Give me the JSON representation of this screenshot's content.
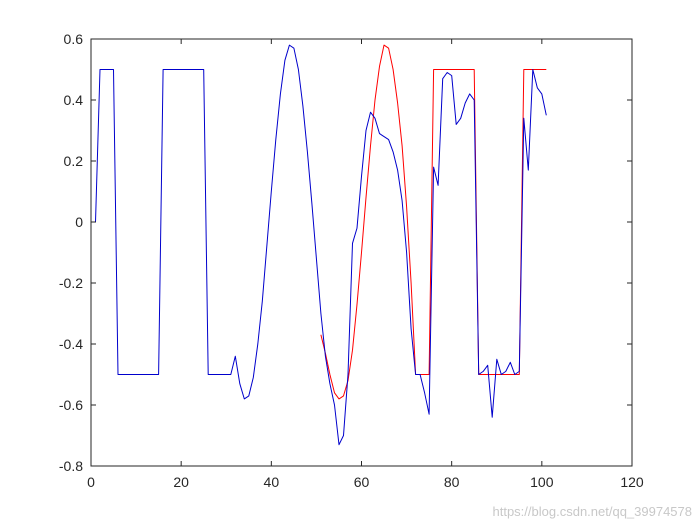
{
  "chart_data": {
    "type": "line",
    "title": "",
    "xlabel": "",
    "ylabel": "",
    "xlim": [
      0,
      120
    ],
    "ylim": [
      -0.8,
      0.6
    ],
    "xticks": [
      0,
      20,
      40,
      60,
      80,
      100,
      120
    ],
    "xtick_labels": [
      "0",
      "20",
      "40",
      "60",
      "80",
      "100",
      "120"
    ],
    "yticks": [
      0.6,
      0.4,
      0.2,
      0,
      -0.2,
      -0.4,
      -0.6,
      -0.8
    ],
    "ytick_labels": [
      "0.6",
      "0.4",
      "0.2",
      "0",
      "-0.2",
      "-0.4",
      "-0.6",
      "-0.8"
    ],
    "grid": false,
    "series": [
      {
        "color": "#ff0000",
        "points": [
          [
            51,
            -0.37
          ],
          [
            52,
            -0.43
          ],
          [
            53,
            -0.5
          ],
          [
            54,
            -0.56
          ],
          [
            55,
            -0.58
          ],
          [
            56,
            -0.57
          ],
          [
            57,
            -0.52
          ],
          [
            58,
            -0.42
          ],
          [
            59,
            -0.27
          ],
          [
            60,
            -0.1
          ],
          [
            61,
            0.08
          ],
          [
            62,
            0.25
          ],
          [
            63,
            0.4
          ],
          [
            64,
            0.51
          ],
          [
            65,
            0.58
          ],
          [
            66,
            0.57
          ],
          [
            67,
            0.5
          ],
          [
            68,
            0.39
          ],
          [
            69,
            0.25
          ],
          [
            70,
            0.05
          ],
          [
            71,
            -0.2
          ],
          [
            72,
            -0.5
          ],
          [
            73,
            -0.5
          ],
          [
            74,
            -0.5
          ],
          [
            75,
            -0.5
          ],
          [
            76,
            0.5
          ],
          [
            77,
            0.5
          ],
          [
            78,
            0.5
          ],
          [
            79,
            0.5
          ],
          [
            80,
            0.5
          ],
          [
            81,
            0.5
          ],
          [
            82,
            0.5
          ],
          [
            83,
            0.5
          ],
          [
            84,
            0.5
          ],
          [
            85,
            0.5
          ],
          [
            86,
            -0.5
          ],
          [
            87,
            -0.5
          ],
          [
            88,
            -0.5
          ],
          [
            89,
            -0.5
          ],
          [
            90,
            -0.5
          ],
          [
            91,
            -0.5
          ],
          [
            92,
            -0.5
          ],
          [
            93,
            -0.5
          ],
          [
            94,
            -0.5
          ],
          [
            95,
            -0.5
          ],
          [
            96,
            0.5
          ],
          [
            97,
            0.5
          ],
          [
            98,
            0.5
          ],
          [
            99,
            0.5
          ],
          [
            100,
            0.5
          ],
          [
            101,
            0.5
          ]
        ]
      },
      {
        "color": "#0000cc",
        "points": [
          [
            1,
            0.0
          ],
          [
            2,
            0.5
          ],
          [
            3,
            0.5
          ],
          [
            4,
            0.5
          ],
          [
            5,
            0.5
          ],
          [
            6,
            -0.5
          ],
          [
            7,
            -0.5
          ],
          [
            8,
            -0.5
          ],
          [
            9,
            -0.5
          ],
          [
            10,
            -0.5
          ],
          [
            11,
            -0.5
          ],
          [
            12,
            -0.5
          ],
          [
            13,
            -0.5
          ],
          [
            14,
            -0.5
          ],
          [
            15,
            -0.5
          ],
          [
            16,
            0.5
          ],
          [
            17,
            0.5
          ],
          [
            18,
            0.5
          ],
          [
            19,
            0.5
          ],
          [
            20,
            0.5
          ],
          [
            21,
            0.5
          ],
          [
            22,
            0.5
          ],
          [
            23,
            0.5
          ],
          [
            24,
            0.5
          ],
          [
            25,
            0.5
          ],
          [
            26,
            -0.5
          ],
          [
            27,
            -0.5
          ],
          [
            28,
            -0.5
          ],
          [
            29,
            -0.5
          ],
          [
            30,
            -0.5
          ],
          [
            31,
            -0.5
          ],
          [
            32,
            -0.44
          ],
          [
            33,
            -0.53
          ],
          [
            34,
            -0.58
          ],
          [
            35,
            -0.57
          ],
          [
            36,
            -0.51
          ],
          [
            37,
            -0.4
          ],
          [
            38,
            -0.26
          ],
          [
            39,
            -0.08
          ],
          [
            40,
            0.1
          ],
          [
            41,
            0.27
          ],
          [
            42,
            0.42
          ],
          [
            43,
            0.53
          ],
          [
            44,
            0.58
          ],
          [
            45,
            0.57
          ],
          [
            46,
            0.5
          ],
          [
            47,
            0.38
          ],
          [
            48,
            0.23
          ],
          [
            49,
            0.06
          ],
          [
            50,
            -0.12
          ],
          [
            51,
            -0.3
          ],
          [
            52,
            -0.44
          ],
          [
            53,
            -0.53
          ],
          [
            54,
            -0.6
          ],
          [
            55,
            -0.73
          ],
          [
            56,
            -0.7
          ],
          [
            57,
            -0.5
          ],
          [
            58,
            -0.07
          ],
          [
            59,
            -0.02
          ],
          [
            60,
            0.15
          ],
          [
            61,
            0.3
          ],
          [
            62,
            0.36
          ],
          [
            63,
            0.34
          ],
          [
            64,
            0.29
          ],
          [
            65,
            0.28
          ],
          [
            66,
            0.27
          ],
          [
            67,
            0.23
          ],
          [
            68,
            0.17
          ],
          [
            69,
            0.07
          ],
          [
            70,
            -0.1
          ],
          [
            71,
            -0.35
          ],
          [
            72,
            -0.5
          ],
          [
            73,
            -0.5
          ],
          [
            74,
            -0.56
          ],
          [
            75,
            -0.63
          ],
          [
            76,
            0.18
          ],
          [
            77,
            0.12
          ],
          [
            78,
            0.47
          ],
          [
            79,
            0.49
          ],
          [
            80,
            0.48
          ],
          [
            81,
            0.32
          ],
          [
            82,
            0.34
          ],
          [
            83,
            0.39
          ],
          [
            84,
            0.42
          ],
          [
            85,
            0.4
          ],
          [
            86,
            -0.5
          ],
          [
            87,
            -0.49
          ],
          [
            88,
            -0.47
          ],
          [
            89,
            -0.64
          ],
          [
            90,
            -0.45
          ],
          [
            91,
            -0.5
          ],
          [
            92,
            -0.49
          ],
          [
            93,
            -0.46
          ],
          [
            94,
            -0.5
          ],
          [
            95,
            -0.49
          ],
          [
            96,
            0.34
          ],
          [
            97,
            0.17
          ],
          [
            98,
            0.5
          ],
          [
            99,
            0.44
          ],
          [
            100,
            0.42
          ],
          [
            101,
            0.35
          ]
        ]
      }
    ]
  },
  "watermark": "https://blog.csdn.net/qq_39974578"
}
